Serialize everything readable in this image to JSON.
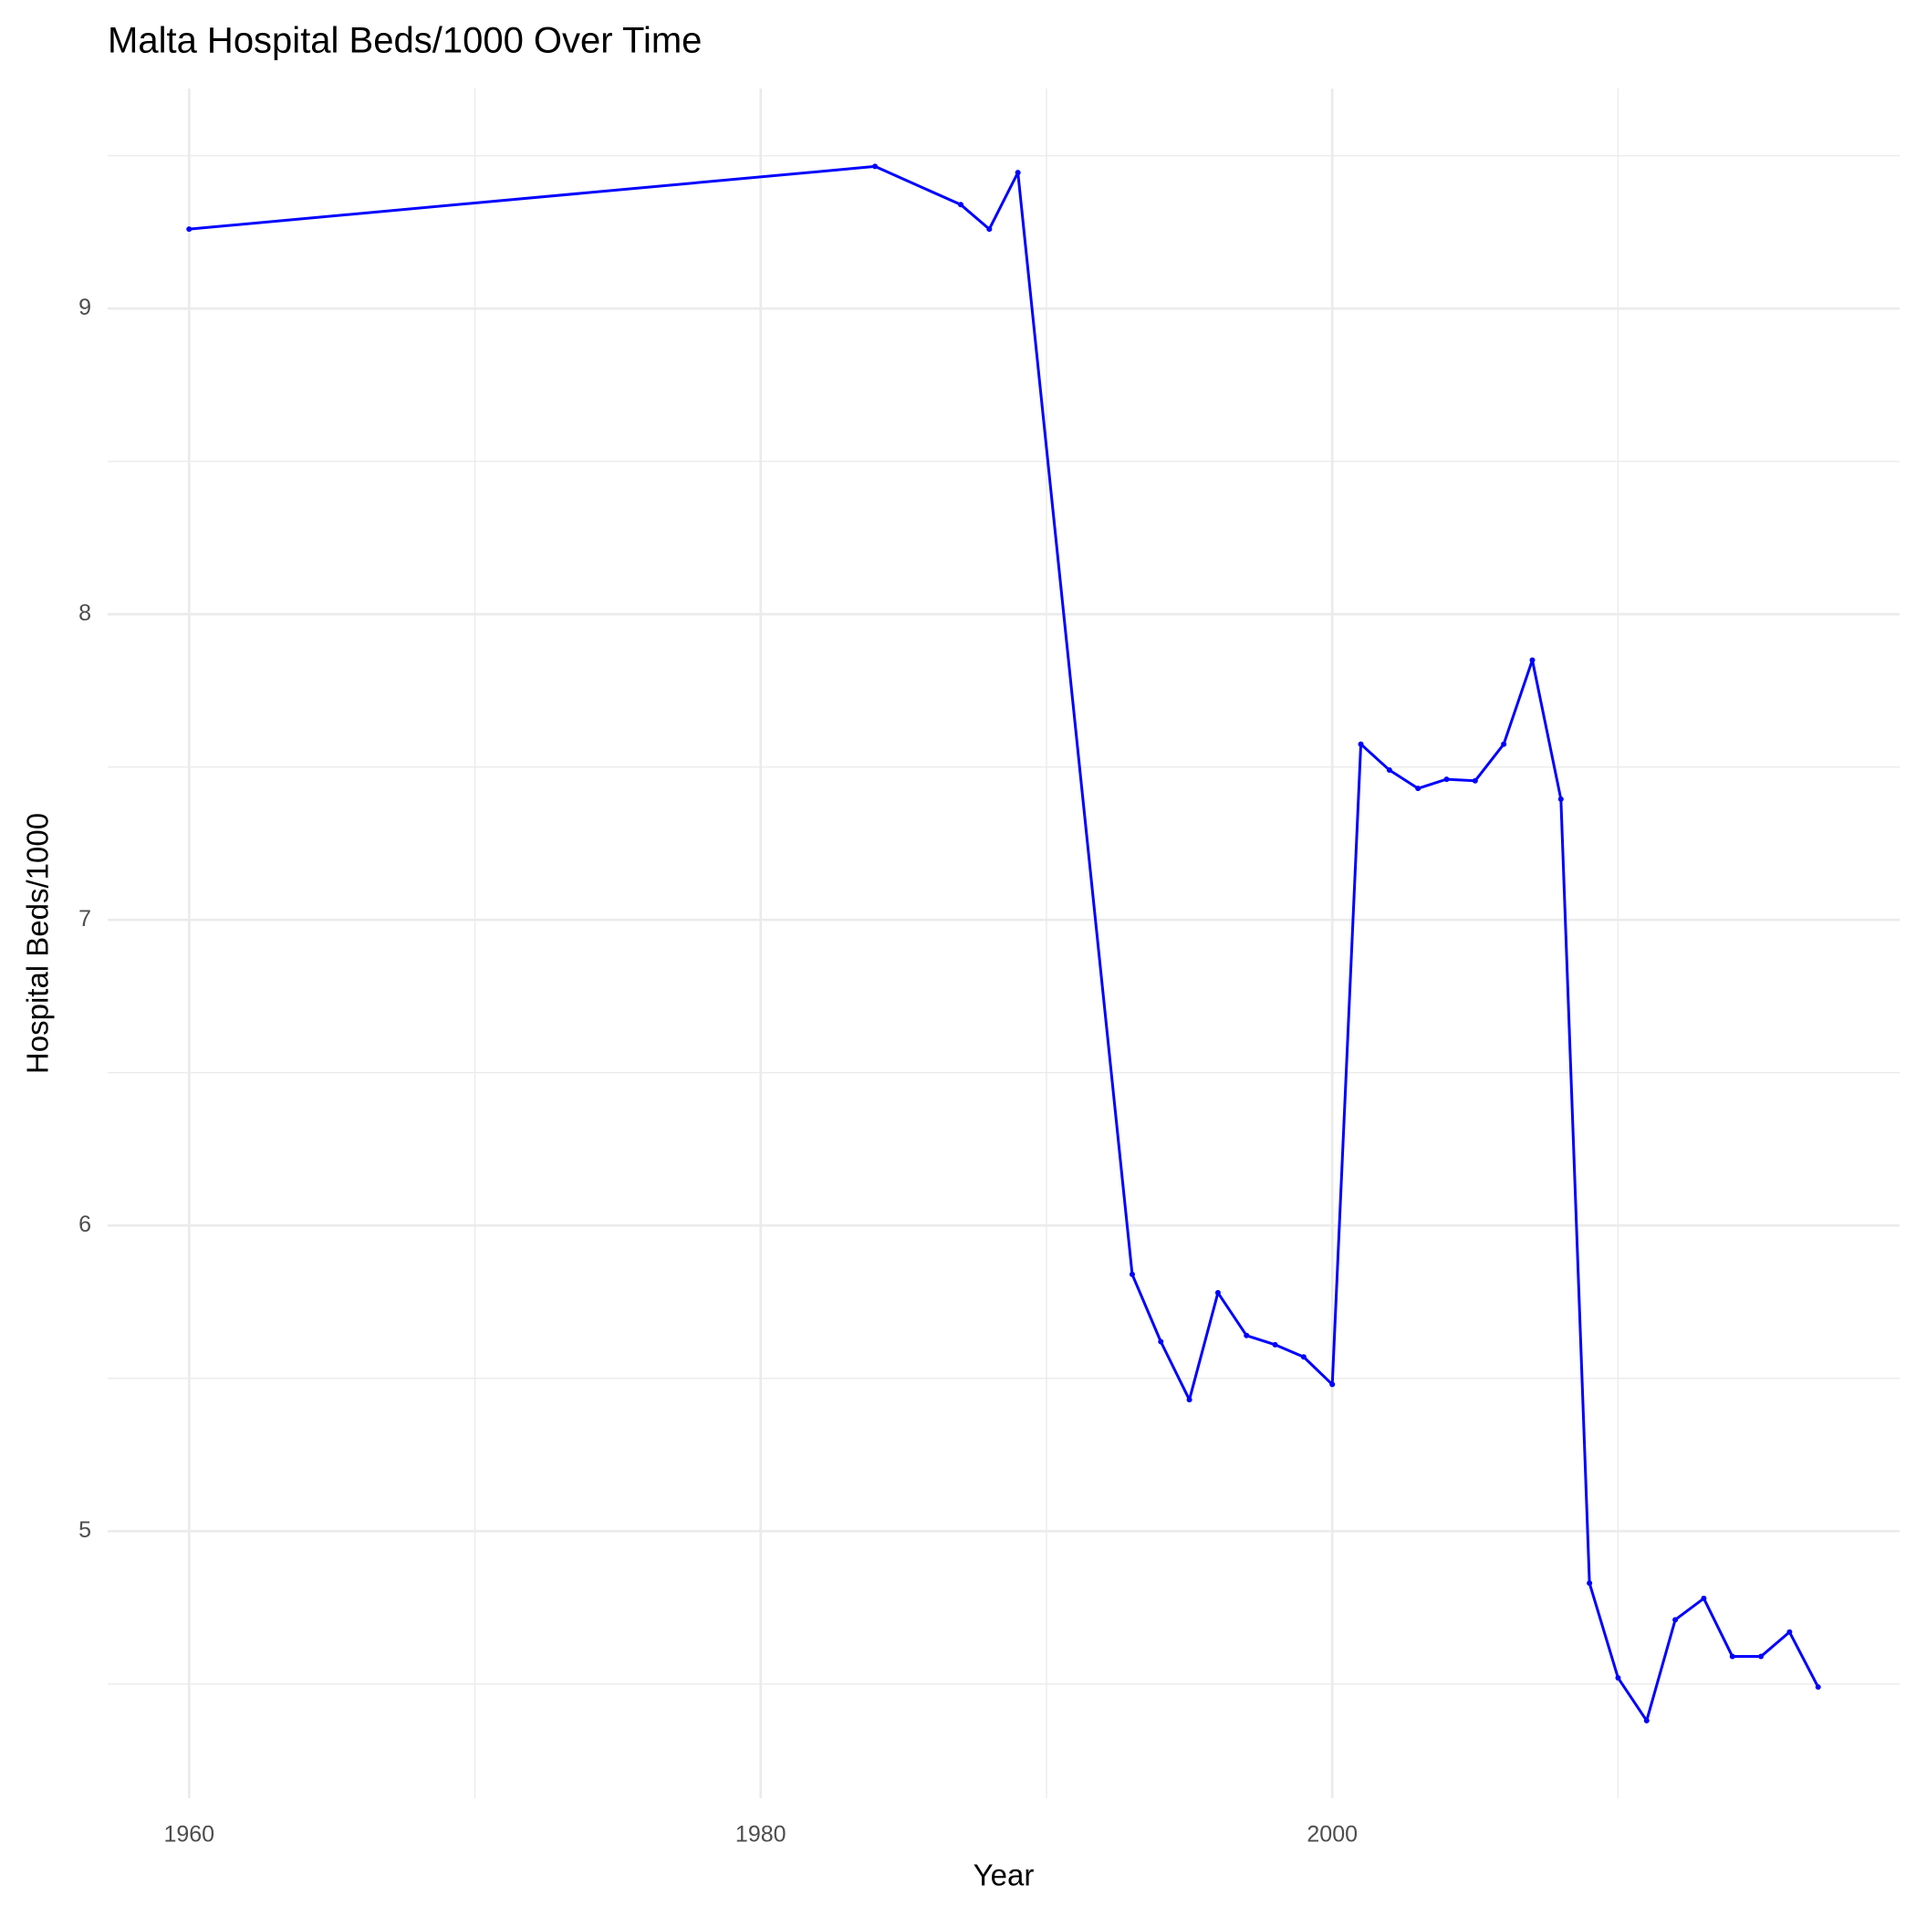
{
  "chart_data": {
    "type": "line",
    "title": "Malta Hospital Beds/1000 Over Time",
    "x_label": "Year",
    "y_label": "Hospital Beds/1000",
    "series": [
      {
        "name": "Hospital Beds/1000",
        "color": "#0000ff",
        "x": [
          1960,
          1984,
          1987,
          1988,
          1989,
          1993,
          1994,
          1995,
          1996,
          1997,
          1998,
          1999,
          2000,
          2001,
          2002,
          2003,
          2004,
          2005,
          2006,
          2007,
          2008,
          2009,
          2010,
          2011,
          2012,
          2013,
          2014,
          2015,
          2016,
          2017
        ],
        "values": [
          9.26,
          9.465,
          9.34,
          9.26,
          9.445,
          5.84,
          5.62,
          5.43,
          5.78,
          5.64,
          5.61,
          5.57,
          5.48,
          7.575,
          7.49,
          7.43,
          7.46,
          7.455,
          7.575,
          7.85,
          7.395,
          4.83,
          4.52,
          4.38,
          4.71,
          4.78,
          4.59,
          4.59,
          4.67,
          4.49
        ]
      }
    ],
    "xlim": [
      1957.15,
      2019.85
    ],
    "xticks": [
      1960,
      1980,
      2000
    ],
    "xminor": [
      1970,
      1990,
      2010
    ],
    "ylim": [
      4.126,
      9.72
    ],
    "yticks": [
      5,
      6,
      7,
      8,
      9
    ],
    "yminor": [
      4.5,
      5.5,
      6.5,
      7.5,
      8.5,
      9.5
    ],
    "grid": true
  }
}
